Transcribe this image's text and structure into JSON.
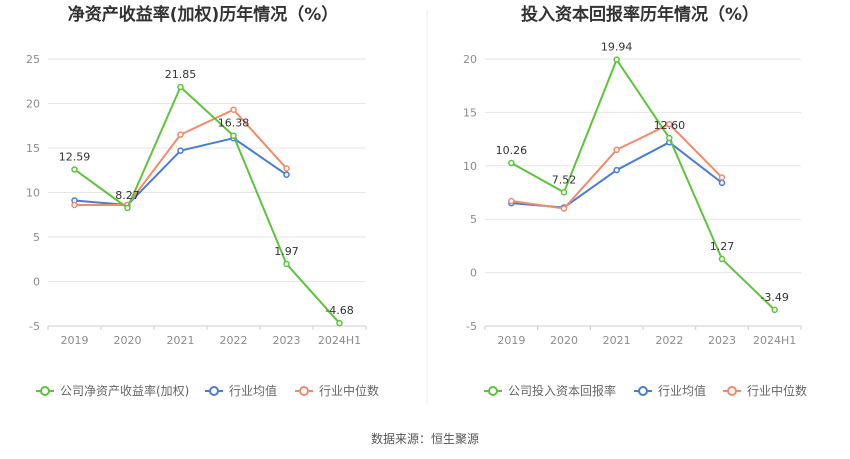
{
  "source": "数据来源：恒生聚源",
  "colors": {
    "company": "#5ec43e",
    "avg": "#4a7bd8",
    "median": "#f08c6a"
  },
  "chart_data": [
    {
      "type": "line",
      "title": "净资产收益率(加权)历年情况（%）",
      "categories": [
        "2019",
        "2020",
        "2021",
        "2022",
        "2023",
        "2024H1"
      ],
      "ylim": [
        -5,
        25
      ],
      "yticks": [
        -5,
        0,
        5,
        10,
        15,
        20,
        25
      ],
      "grid": true,
      "legend_position": "bottom",
      "series": [
        {
          "name": "公司净资产收益率(加权)",
          "key": "company",
          "values": [
            12.59,
            8.27,
            21.85,
            16.38,
            1.97,
            -4.68
          ],
          "labels": [
            "12.59",
            "8.27",
            "21.85",
            "16.38",
            "1.97",
            "-4.68"
          ]
        },
        {
          "name": "行业均值",
          "key": "avg",
          "values": [
            9.1,
            8.6,
            14.7,
            16.1,
            12.0,
            null
          ]
        },
        {
          "name": "行业中位数",
          "key": "median",
          "values": [
            8.6,
            8.6,
            16.5,
            19.3,
            12.7,
            null
          ]
        }
      ]
    },
    {
      "type": "line",
      "title": "投入资本回报率历年情况（%）",
      "categories": [
        "2019",
        "2020",
        "2021",
        "2022",
        "2023",
        "2024H1"
      ],
      "ylim": [
        -5,
        20
      ],
      "yticks": [
        -5,
        0,
        5,
        10,
        15,
        20
      ],
      "grid": true,
      "legend_position": "bottom",
      "series": [
        {
          "name": "公司投入资本回报率",
          "key": "company",
          "values": [
            10.26,
            7.52,
            19.94,
            12.6,
            1.27,
            -3.49
          ],
          "labels": [
            "10.26",
            "7.52",
            "19.94",
            "12.60",
            "1.27",
            "-3.49"
          ]
        },
        {
          "name": "行业均值",
          "key": "avg",
          "values": [
            6.5,
            6.1,
            9.6,
            12.2,
            8.4,
            null
          ]
        },
        {
          "name": "行业中位数",
          "key": "median",
          "values": [
            6.7,
            6.0,
            11.5,
            13.9,
            8.9,
            null
          ]
        }
      ]
    }
  ]
}
